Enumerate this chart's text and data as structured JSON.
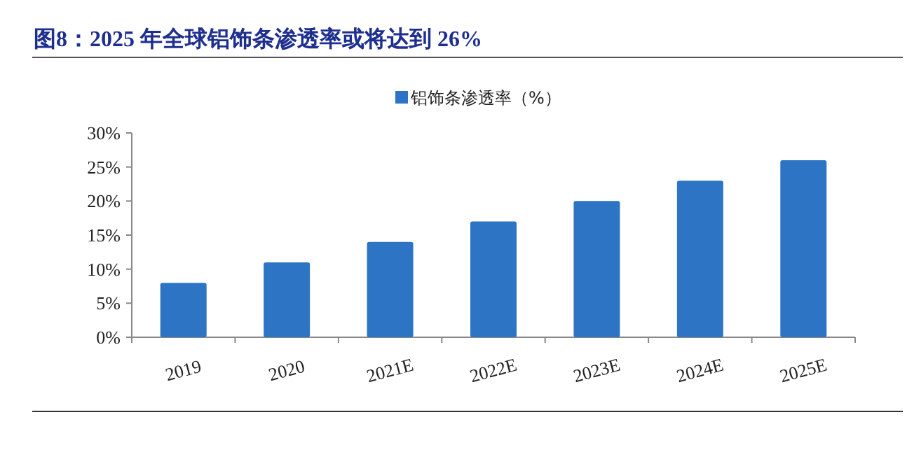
{
  "chart_data": {
    "type": "bar",
    "title": "图8：2025 年全球铝饰条渗透率或将达到 26%",
    "categories": [
      "2019",
      "2020",
      "2021E",
      "2022E",
      "2023E",
      "2024E",
      "2025E"
    ],
    "series": [
      {
        "name": "铝饰条渗透率（%）",
        "color": "#2e74c5",
        "values": [
          8,
          11,
          14,
          17,
          20,
          23,
          26
        ]
      }
    ],
    "ylim": [
      0,
      30
    ],
    "yticks": [
      {
        "value": 0,
        "label": "0%"
      },
      {
        "value": 5,
        "label": "5%"
      },
      {
        "value": 10,
        "label": "10%"
      },
      {
        "value": 15,
        "label": "15%"
      },
      {
        "value": 20,
        "label": "20%"
      },
      {
        "value": 25,
        "label": "25%"
      },
      {
        "value": 30,
        "label": "30%"
      }
    ],
    "grid": false,
    "legend": "top"
  }
}
